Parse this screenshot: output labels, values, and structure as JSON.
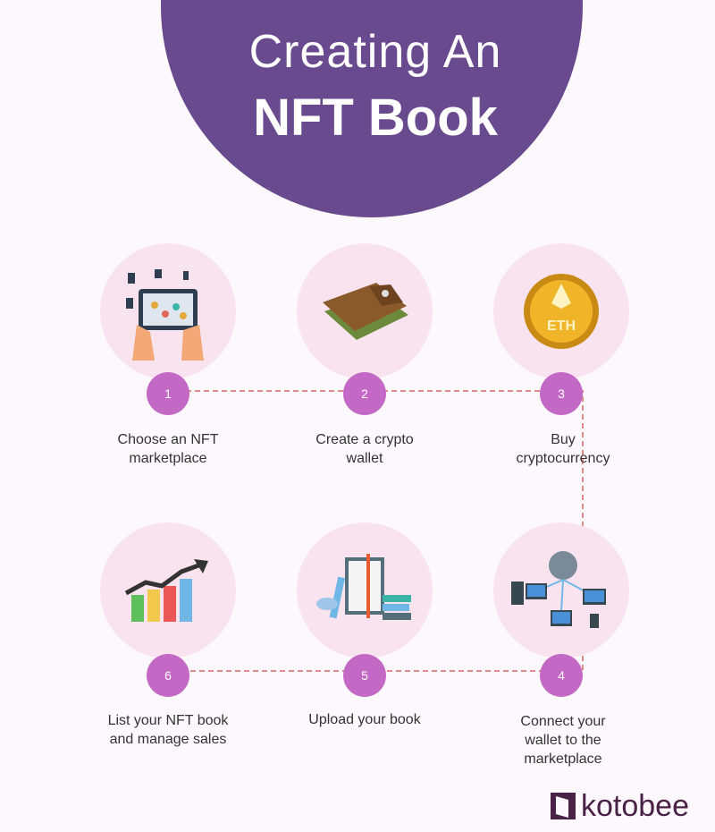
{
  "title": {
    "line1": "Creating An",
    "line2": "NFT Book"
  },
  "steps": [
    {
      "number": "1",
      "label": "Choose an NFT marketplace",
      "icon": "tablet-shopping-icon"
    },
    {
      "number": "2",
      "label": "Create a crypto wallet",
      "icon": "wallet-icon"
    },
    {
      "number": "3",
      "label": "Buy cryptocurrency",
      "icon": "eth-coin-icon"
    },
    {
      "number": "4",
      "label": "Connect your wallet to the marketplace",
      "icon": "network-devices-icon"
    },
    {
      "number": "5",
      "label": "Upload your book",
      "icon": "books-icon"
    },
    {
      "number": "6",
      "label": "List your NFT book and manage sales",
      "icon": "growth-chart-icon"
    }
  ],
  "coin_text": "ETH",
  "brand": "kotobee",
  "colors": {
    "header": "#694a8f",
    "badge": "#c468c6",
    "circle": "#f9e3ef",
    "connector": "#e08a8a",
    "brand": "#4a2248"
  }
}
